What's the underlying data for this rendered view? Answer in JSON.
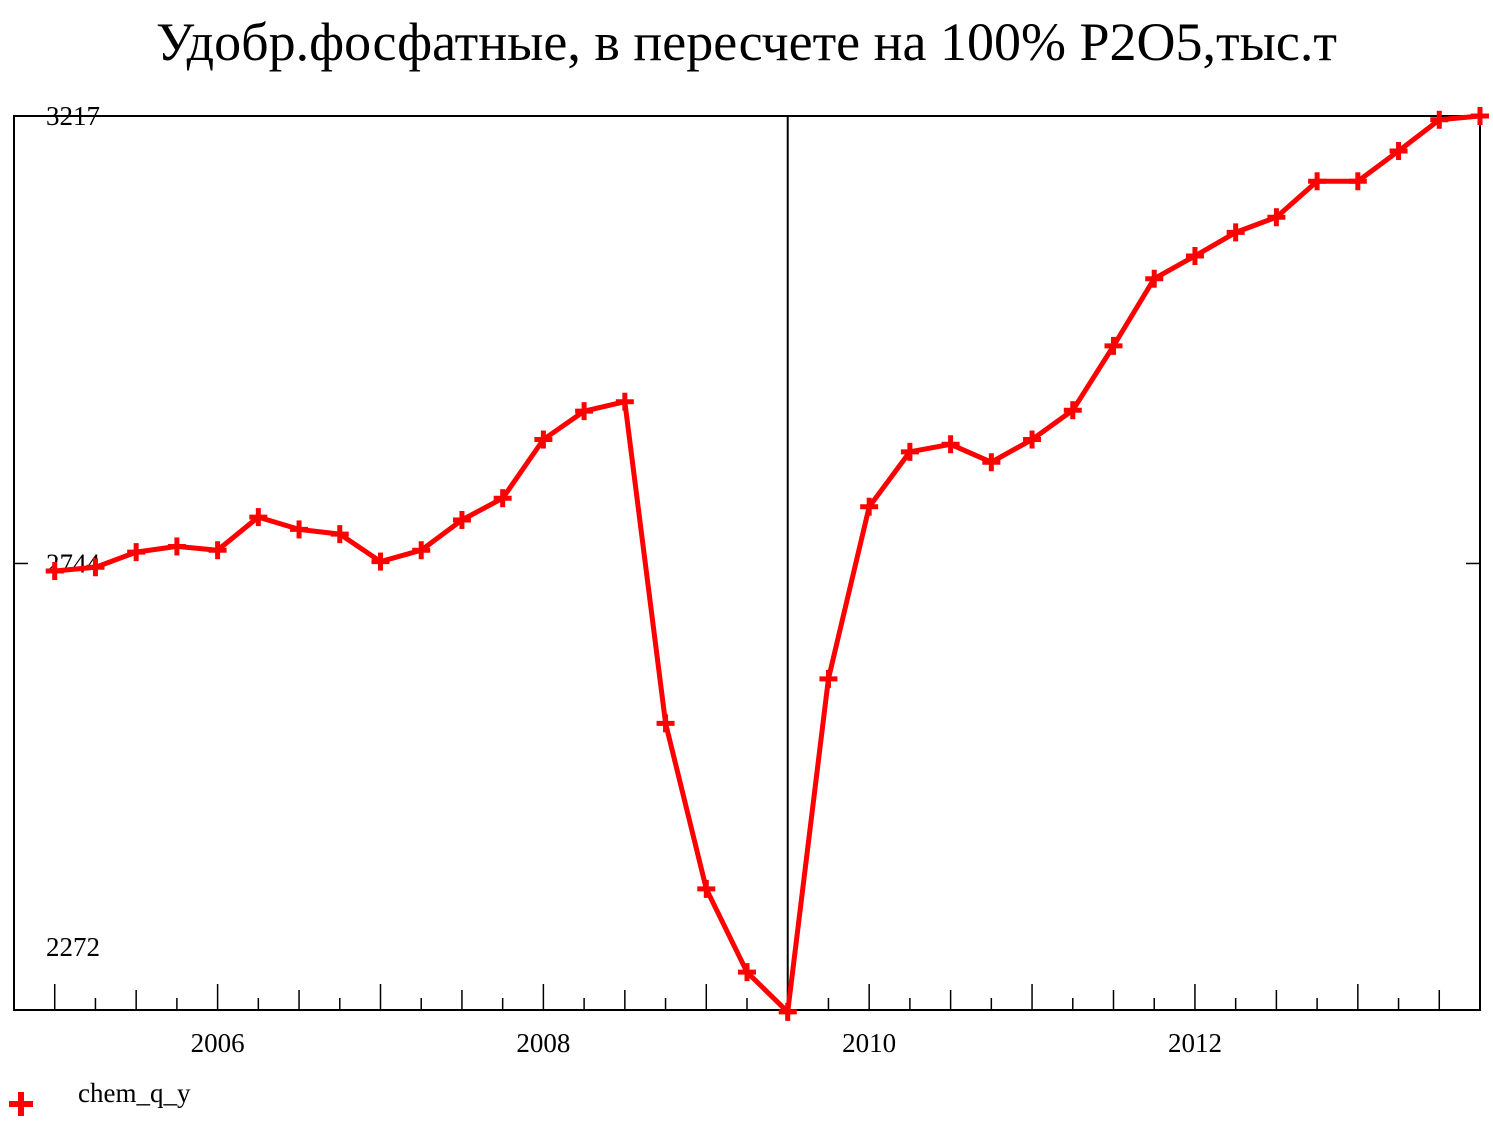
{
  "chart_data": {
    "type": "line",
    "title": "Удобр.фосфатные, в пересчете на 100% P2O5,тыс.т",
    "xlabel": "",
    "ylabel": "",
    "xlim": [
      2004.75,
      2013.75
    ],
    "ylim": [
      2272,
      3217
    ],
    "y_ticks": [
      "3217",
      "2744",
      "2272"
    ],
    "x_ticks": [
      "2006",
      "2008",
      "2010",
      "2012"
    ],
    "x_tick_values": [
      2006,
      2008,
      2010,
      2012
    ],
    "reference_line_x": 2009.5,
    "grid": false,
    "legend_position": "bottom-left",
    "series": [
      {
        "name": "chem_q_y",
        "color": "#ff0000",
        "marker": "plus",
        "x": [
          2005.0,
          2005.25,
          2005.5,
          2005.75,
          2006.0,
          2006.25,
          2006.5,
          2006.75,
          2007.0,
          2007.25,
          2007.5,
          2007.75,
          2008.0,
          2008.25,
          2008.5,
          2008.75,
          2009.0,
          2009.25,
          2009.5,
          2009.75,
          2010.0,
          2010.25,
          2010.5,
          2010.75,
          2011.0,
          2011.25,
          2011.5,
          2011.75,
          2012.0,
          2012.25,
          2012.5,
          2012.75,
          2013.0,
          2013.25,
          2013.5,
          2013.75
        ],
        "values": [
          2736,
          2740,
          2756,
          2762,
          2758,
          2793,
          2780,
          2775,
          2746,
          2758,
          2790,
          2813,
          2875,
          2905,
          2915,
          2575,
          2400,
          2312,
          2270,
          2622,
          2804,
          2862,
          2870,
          2851,
          2875,
          2906,
          2974,
          3045,
          3069,
          3094,
          3110,
          3148,
          3148,
          3180,
          3213,
          3217
        ]
      }
    ]
  }
}
